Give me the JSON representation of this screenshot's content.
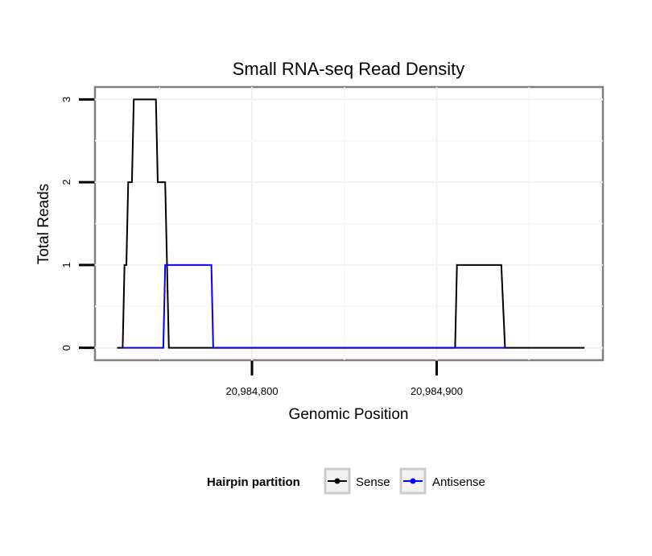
{
  "chart_data": {
    "type": "line",
    "title": "Small RNA-seq Read Density",
    "xlabel": "Genomic Position",
    "ylabel": "Total Reads",
    "xlim": [
      20984715,
      20984990
    ],
    "ylim": [
      -0.15,
      3.15
    ],
    "x_ticks": [
      20984800,
      20984900
    ],
    "x_tick_labels": [
      "20,984,800",
      "20,984,900"
    ],
    "y_ticks": [
      0,
      1,
      2,
      3
    ],
    "y_tick_labels": [
      "0",
      "1",
      "2",
      "3"
    ],
    "grid": true,
    "legend": {
      "title": "Hairpin partition",
      "position": "bottom",
      "entries": [
        "Sense",
        "Antisense"
      ]
    },
    "series": [
      {
        "name": "Sense",
        "color": "#000000",
        "points": [
          [
            20984727,
            0
          ],
          [
            20984730,
            0
          ],
          [
            20984731,
            1
          ],
          [
            20984732,
            1
          ],
          [
            20984733,
            2
          ],
          [
            20984735,
            2
          ],
          [
            20984736,
            3
          ],
          [
            20984748,
            3
          ],
          [
            20984749,
            2
          ],
          [
            20984753,
            2
          ],
          [
            20984755,
            0
          ],
          [
            20984910,
            0
          ],
          [
            20984911,
            1
          ],
          [
            20984935,
            1
          ],
          [
            20984937,
            0
          ],
          [
            20984980,
            0
          ]
        ]
      },
      {
        "name": "Antisense",
        "color": "#0000ff",
        "points": [
          [
            20984730,
            0
          ],
          [
            20984752,
            0
          ],
          [
            20984753,
            1
          ],
          [
            20984778,
            1
          ],
          [
            20984779,
            0
          ],
          [
            20984910,
            0
          ],
          [
            20984937,
            0
          ]
        ]
      }
    ]
  }
}
